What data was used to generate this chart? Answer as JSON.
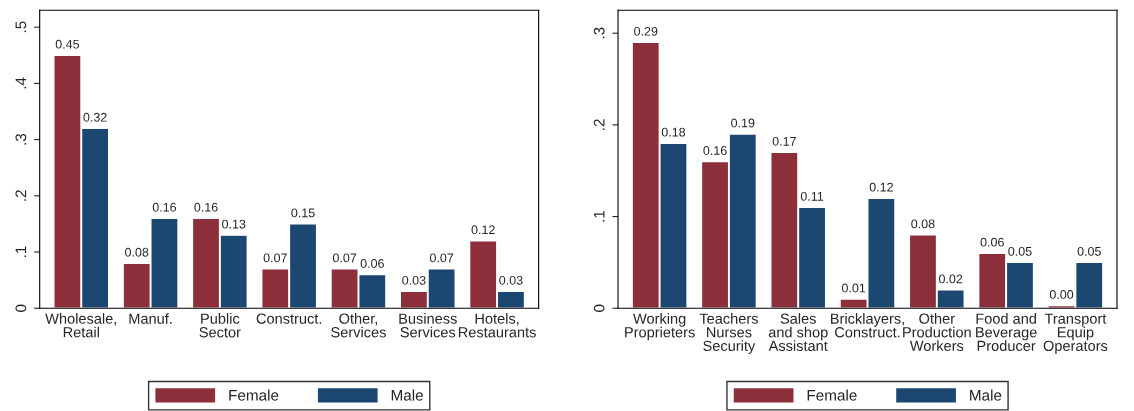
{
  "chart_data": [
    {
      "type": "bar",
      "categories": [
        "Wholesale,\nRetail",
        "Manuf.",
        "Public\nSector",
        "Construct.",
        "Other,\nServices",
        "Business\nServices",
        "Hotels,\nRestaurants"
      ],
      "series": [
        {
          "name": "Female",
          "color": "#8c2f3b",
          "values": [
            0.45,
            0.08,
            0.16,
            0.07,
            0.07,
            0.03,
            0.12
          ],
          "value_labels": [
            "0.45",
            "0.08",
            "0.16",
            "0.07",
            "0.07",
            "0.03",
            "0.12"
          ]
        },
        {
          "name": "Male",
          "color": "#1c4770",
          "values": [
            0.32,
            0.16,
            0.13,
            0.15,
            0.06,
            0.07,
            0.03
          ],
          "value_labels": [
            "0.32",
            "0.16",
            "0.13",
            "0.15",
            "0.06",
            "0.07",
            "0.03"
          ]
        }
      ],
      "ylim": [
        0,
        0.53
      ],
      "yticks": [
        0,
        {
          "value": 0.1,
          "label": ".1"
        },
        {
          "value": 0.2,
          "label": ".2"
        },
        {
          "value": 0.3,
          "label": ".3"
        },
        {
          "value": 0.4,
          "label": ".4"
        },
        {
          "value": 0.5,
          "label": ".5"
        }
      ],
      "grid": false,
      "legend": "bottom"
    },
    {
      "type": "bar",
      "categories": [
        "Working\nProprieters",
        "Teachers\nNurses\nSecurity",
        "Sales\nand shop\nAssistant",
        "Bricklayers,\nConstruct.",
        "Other\nProduction\nWorkers",
        "Food and\nBeverage\nProducer",
        "Transport\nEquip\nOperators"
      ],
      "series": [
        {
          "name": "Female",
          "color": "#8c2f3b",
          "values": [
            0.29,
            0.16,
            0.17,
            0.01,
            0.08,
            0.06,
            0.003
          ],
          "value_labels": [
            "0.29",
            "0.16",
            "0.17",
            "0.01",
            "0.08",
            "0.06",
            "0.00"
          ]
        },
        {
          "name": "Male",
          "color": "#1c4770",
          "values": [
            0.18,
            0.19,
            0.11,
            0.12,
            0.02,
            0.05,
            0.05
          ],
          "value_labels": [
            "0.18",
            "0.19",
            "0.11",
            "0.12",
            "0.02",
            "0.05",
            "0.05"
          ]
        }
      ],
      "ylim": [
        0,
        0.325
      ],
      "yticks": [
        0,
        {
          "value": 0.1,
          "label": ".1"
        },
        {
          "value": 0.2,
          "label": ".2"
        },
        {
          "value": 0.3,
          "label": ".3"
        }
      ],
      "grid": false,
      "legend": "bottom"
    }
  ]
}
